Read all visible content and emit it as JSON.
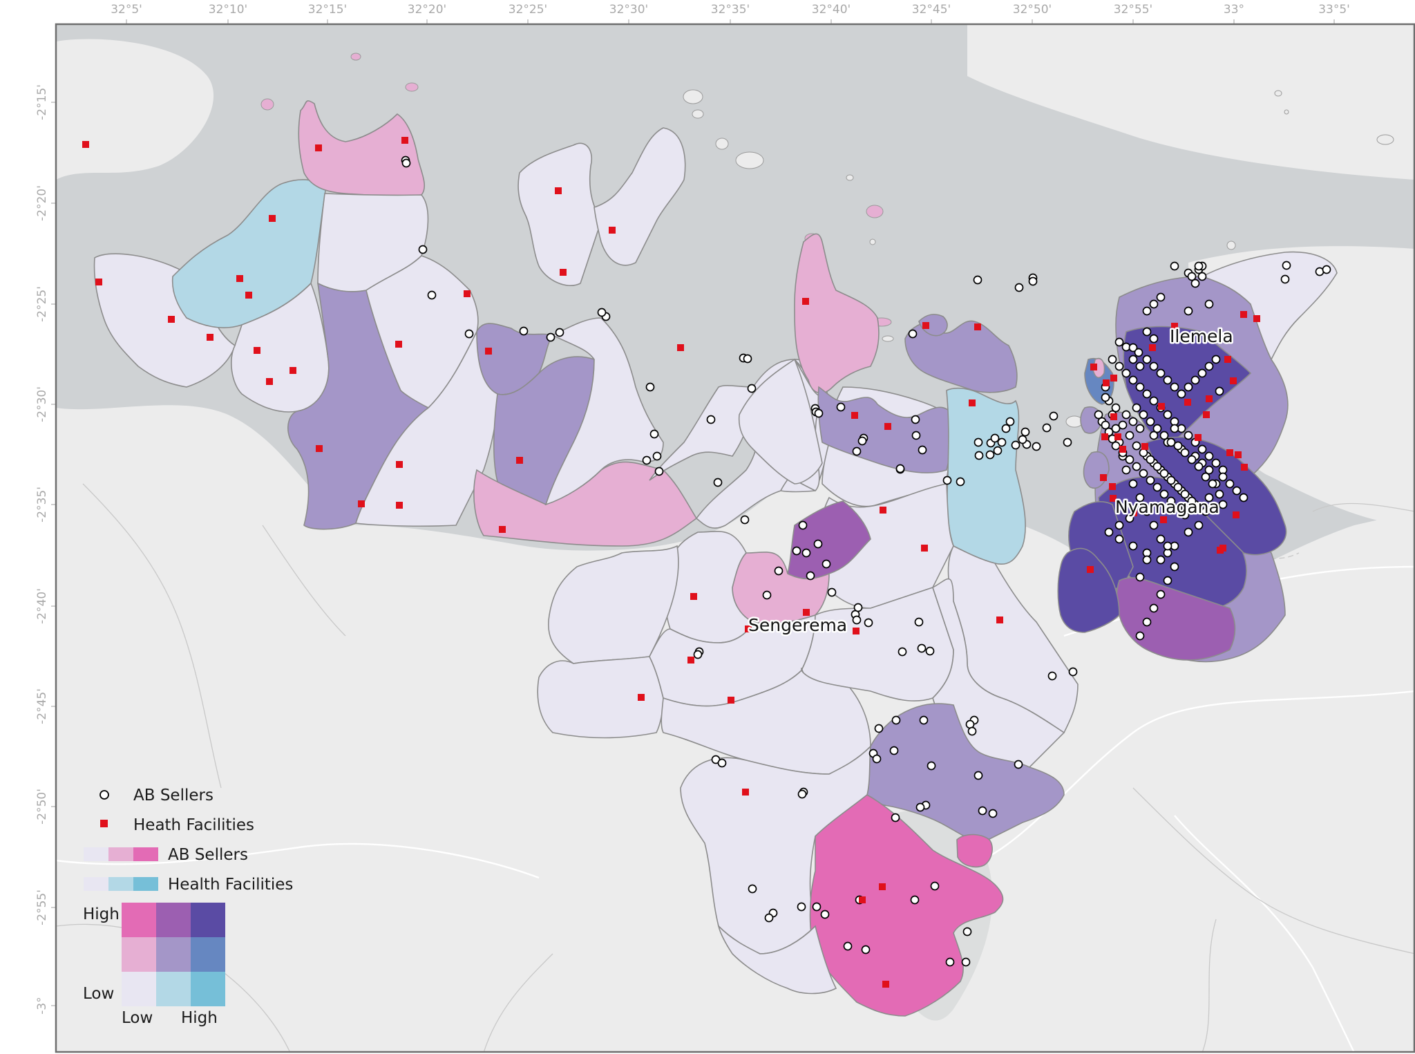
{
  "axes": {
    "top_ticks": [
      "32°5'",
      "32°10'",
      "32°15'",
      "32°20'",
      "32°25'",
      "32°30'",
      "32°35'",
      "32°40'",
      "32°45'",
      "32°50'",
      "32°55'",
      "33°",
      "33°5'"
    ],
    "left_ticks": [
      "-2°15'",
      "-2°20'",
      "-2°25'",
      "-2°30'",
      "-2°35'",
      "-2°40'",
      "-2°45'",
      "-2°50'",
      "-2°55'",
      "-3°"
    ]
  },
  "place_labels": {
    "ilemela": "Ilemela",
    "nyamagana": "Nyamagana",
    "sengerema": "Sengerema"
  },
  "legend": {
    "ab_sellers_points": "AB Sellers",
    "health_facilities_points": "Heath Facilities",
    "ab_sellers_ramp": "AB Sellers",
    "health_facilities_ramp": "Health Facilities",
    "bivariate_high": "High",
    "bivariate_low": "Low",
    "bivariate_x_low": "Low",
    "bivariate_x_high": "High"
  },
  "colors": {
    "water": "#cfd2d4",
    "land_background": "#ececec",
    "frame": "#6e6e6e",
    "facility_marker": "#e0101b",
    "seller_marker_fill": "#ffffff",
    "seller_marker_stroke": "#000000",
    "bivariate_low_low": "#e8e6f2",
    "bivariate_low_mid": "#b3d8e6",
    "bivariate_low_high": "#76bfd8",
    "bivariate_mid_low": "#e6afd3",
    "bivariate_mid_mid": "#a496c8",
    "bivariate_mid_high": "#6687c1",
    "bivariate_high_low": "#e36bb5",
    "bivariate_high_mid": "#9c5fb1",
    "bivariate_high_high": "#5a4ba4"
  }
}
